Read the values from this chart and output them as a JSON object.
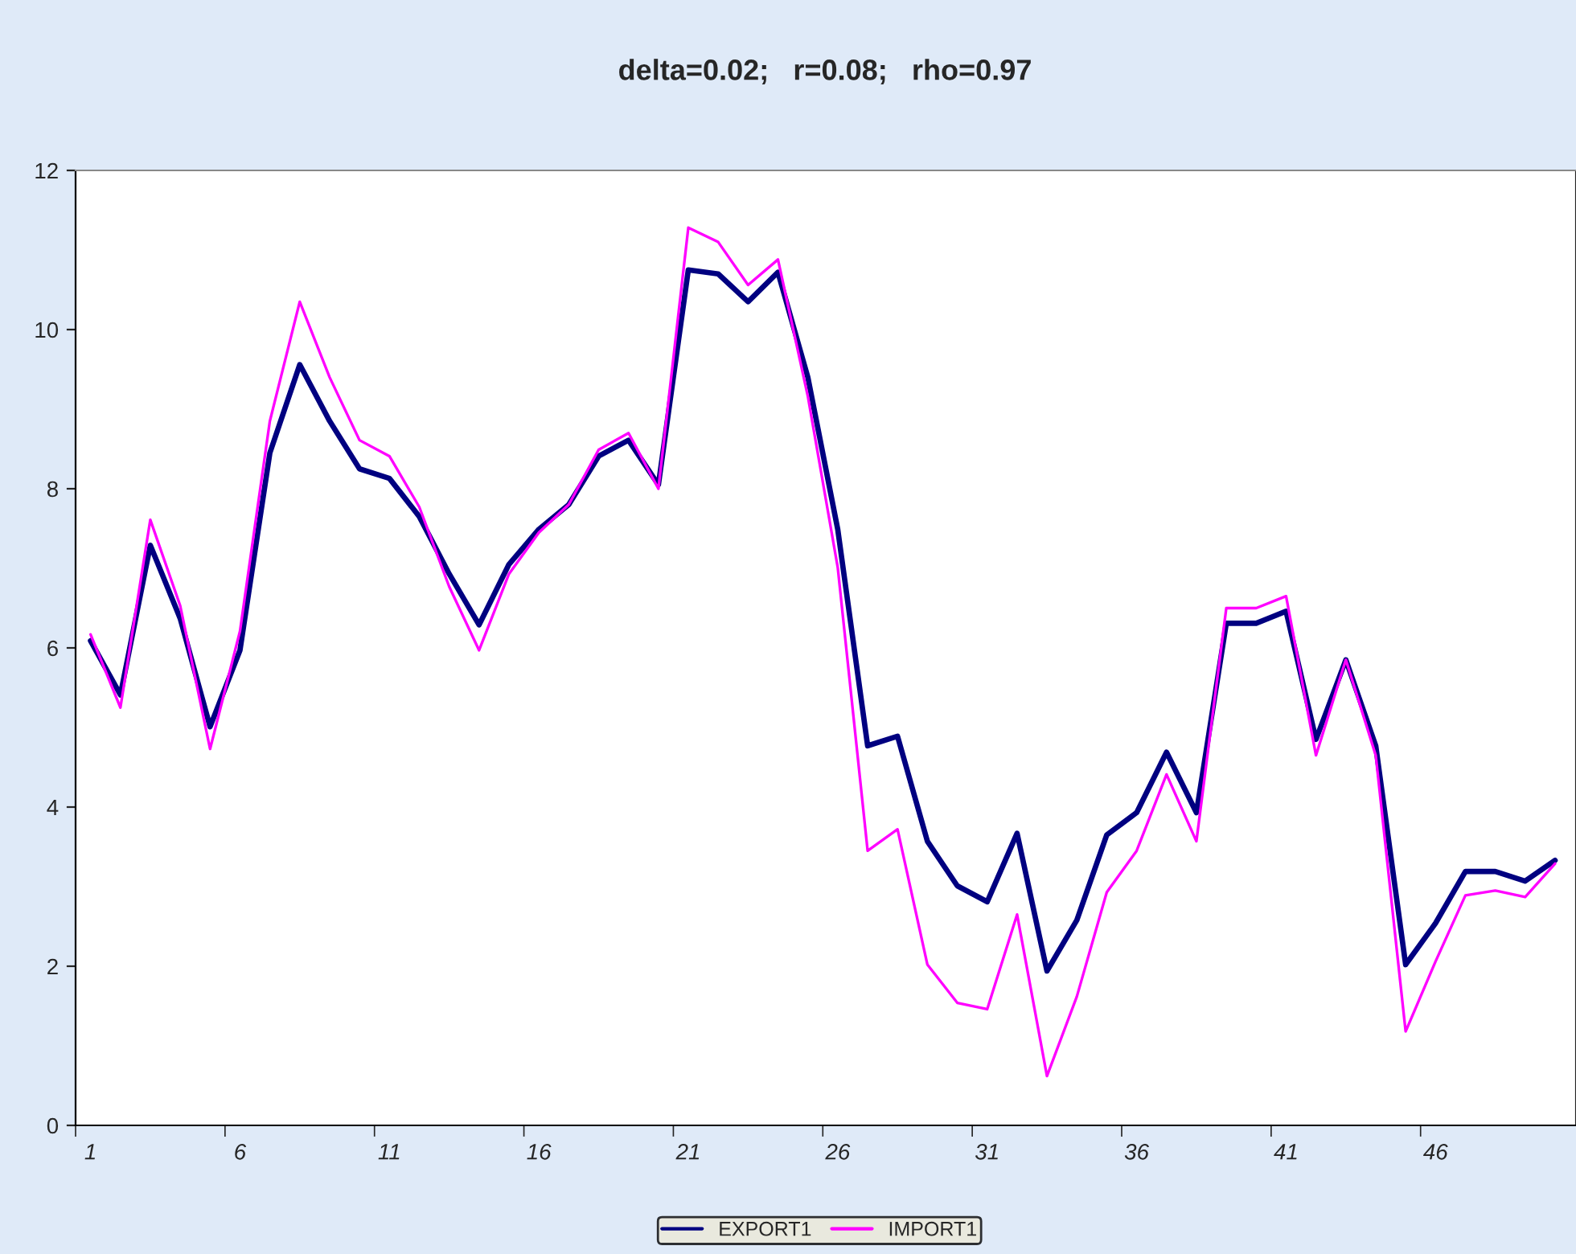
{
  "chart_data": {
    "type": "line",
    "title": "delta=0.02;   r=0.08;   rho=0.97",
    "categories": [
      "1",
      null,
      null,
      null,
      null,
      "6",
      null,
      null,
      null,
      null,
      "11",
      null,
      null,
      null,
      null,
      "16",
      null,
      null,
      null,
      null,
      "21",
      null,
      null,
      null,
      null,
      "26",
      null,
      null,
      null,
      null,
      "31",
      null,
      null,
      null,
      null,
      "36",
      null,
      null,
      null,
      null,
      "41",
      null,
      null,
      null,
      null,
      "46",
      null,
      null,
      null,
      null
    ],
    "series": [
      {
        "name": "EXPORT1",
        "color": "#000080",
        "values": [
          6.09,
          5.41,
          7.29,
          6.37,
          5.01,
          5.97,
          8.45,
          9.56,
          8.85,
          8.25,
          8.13,
          7.65,
          6.93,
          6.29,
          7.05,
          7.49,
          7.8,
          8.41,
          8.61,
          8.05,
          10.75,
          10.7,
          10.35,
          10.72,
          9.4,
          7.49,
          4.77,
          4.89,
          3.57,
          3.01,
          2.81,
          3.67,
          1.94,
          2.58,
          3.65,
          3.93,
          4.69,
          3.93,
          6.31,
          6.31,
          6.46,
          4.85,
          5.85,
          4.77,
          2.02,
          2.54,
          3.19,
          3.19,
          3.07,
          3.33
        ]
      },
      {
        "name": "IMPORT1",
        "color": "#ff00ff",
        "values": [
          6.17,
          5.25,
          7.61,
          6.53,
          4.73,
          6.21,
          8.85,
          10.35,
          9.4,
          8.61,
          8.41,
          7.77,
          6.77,
          5.97,
          6.93,
          7.45,
          7.8,
          8.49,
          8.7,
          8.0,
          11.28,
          11.1,
          10.56,
          10.88,
          9.16,
          7.01,
          3.45,
          3.72,
          2.02,
          1.54,
          1.46,
          2.65,
          0.62,
          1.62,
          2.93,
          3.45,
          4.41,
          3.57,
          6.5,
          6.5,
          6.65,
          4.65,
          5.85,
          4.65,
          1.18,
          2.06,
          2.89,
          2.95,
          2.87,
          3.29
        ]
      }
    ],
    "ylim": [
      0,
      12
    ],
    "yticks": [
      0,
      2,
      4,
      6,
      8,
      10,
      12
    ],
    "grid": false,
    "legend": "bottom",
    "marker": "none",
    "line_style": "solid"
  }
}
